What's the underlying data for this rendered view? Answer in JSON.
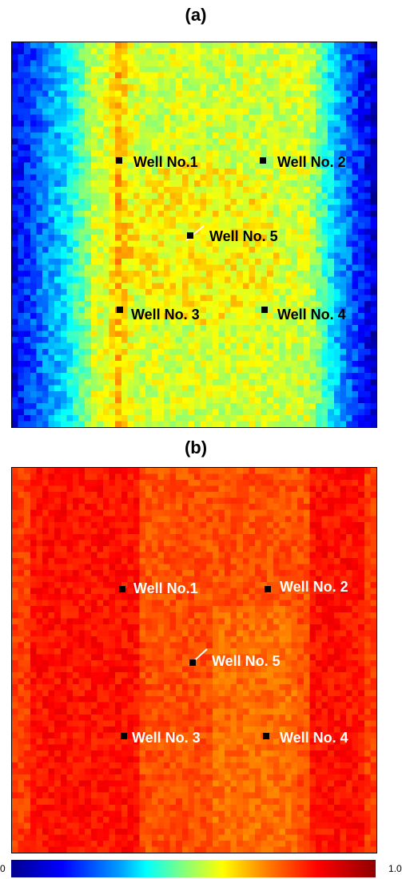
{
  "panel_a": {
    "label": "(a)",
    "wells": {
      "w1": "Well No.1",
      "w2": "Well No. 2",
      "w3": "Well No. 3",
      "w4": "Well No. 4",
      "w5": "Well No. 5"
    }
  },
  "panel_b": {
    "label": "(b)",
    "wells": {
      "w1": "Well No.1",
      "w2": "Well No. 2",
      "w3": "Well No. 3",
      "w4": "Well No. 4",
      "w5": "Well No. 5"
    }
  },
  "colorbar": {
    "min_label": "0",
    "max_label": "1.0",
    "colormap": "jet"
  }
}
